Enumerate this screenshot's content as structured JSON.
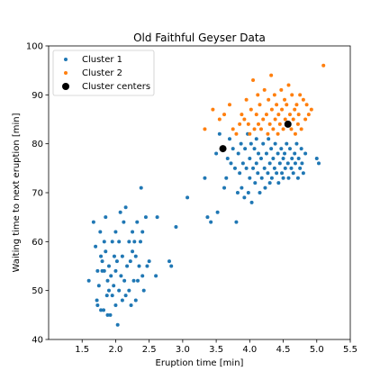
{
  "chart_data": {
    "type": "scatter",
    "title": "Old Faithful Geyser Data",
    "xlabel": "Eruption time [min]",
    "ylabel": "Waiting time to next eruption [min]",
    "xlim": [
      1.0,
      5.5
    ],
    "ylim": [
      40,
      100
    ],
    "xticks": [
      1.5,
      2.0,
      2.5,
      3.0,
      3.5,
      4.0,
      4.5,
      5.0,
      5.5
    ],
    "yticks": [
      40,
      50,
      60,
      70,
      80,
      90,
      100
    ],
    "xtick_labels": [
      "1.5",
      "2.0",
      "2.5",
      "3.0",
      "3.5",
      "4.0",
      "4.5",
      "5.0",
      "5.5"
    ],
    "ytick_labels": [
      "40",
      "50",
      "60",
      "70",
      "80",
      "90",
      "100"
    ],
    "grid": false,
    "legend": {
      "placement": "top-left"
    },
    "series": [
      {
        "name": "Cluster 1",
        "color": "#1f77b4",
        "marker": "dot-small",
        "points": [
          [
            1.6,
            52
          ],
          [
            1.67,
            64
          ],
          [
            1.7,
            59
          ],
          [
            1.72,
            48
          ],
          [
            1.73,
            47
          ],
          [
            1.73,
            54
          ],
          [
            1.75,
            51
          ],
          [
            1.77,
            62
          ],
          [
            1.78,
            46
          ],
          [
            1.78,
            57
          ],
          [
            1.8,
            54
          ],
          [
            1.8,
            56
          ],
          [
            1.82,
            46
          ],
          [
            1.83,
            54
          ],
          [
            1.83,
            60
          ],
          [
            1.85,
            58
          ],
          [
            1.85,
            65
          ],
          [
            1.87,
            49
          ],
          [
            1.88,
            52
          ],
          [
            1.88,
            45
          ],
          [
            1.9,
            50
          ],
          [
            1.9,
            55
          ],
          [
            1.92,
            45
          ],
          [
            1.93,
            53
          ],
          [
            1.95,
            60
          ],
          [
            1.95,
            49
          ],
          [
            1.97,
            51
          ],
          [
            1.98,
            57
          ],
          [
            2.0,
            54
          ],
          [
            2.0,
            62
          ],
          [
            2.0,
            47
          ],
          [
            2.02,
            56
          ],
          [
            2.03,
            43
          ],
          [
            2.05,
            50
          ],
          [
            2.05,
            60
          ],
          [
            2.07,
            66
          ],
          [
            2.08,
            53
          ],
          [
            2.1,
            48
          ],
          [
            2.1,
            57
          ],
          [
            2.12,
            64
          ],
          [
            2.13,
            52
          ],
          [
            2.15,
            67
          ],
          [
            2.15,
            49
          ],
          [
            2.17,
            55
          ],
          [
            2.2,
            60
          ],
          [
            2.2,
            50
          ],
          [
            2.22,
            56
          ],
          [
            2.23,
            47
          ],
          [
            2.25,
            58
          ],
          [
            2.25,
            62
          ],
          [
            2.27,
            52
          ],
          [
            2.28,
            60
          ],
          [
            2.3,
            57
          ],
          [
            2.3,
            48
          ],
          [
            2.32,
            64
          ],
          [
            2.33,
            52
          ],
          [
            2.35,
            55
          ],
          [
            2.37,
            60
          ],
          [
            2.38,
            71
          ],
          [
            2.4,
            53
          ],
          [
            2.4,
            62
          ],
          [
            2.42,
            50
          ],
          [
            2.45,
            65
          ],
          [
            2.47,
            55
          ],
          [
            2.5,
            56
          ],
          [
            2.6,
            53
          ],
          [
            2.62,
            65
          ],
          [
            2.8,
            56
          ],
          [
            2.83,
            55
          ],
          [
            2.9,
            63
          ],
          [
            3.07,
            69
          ],
          [
            3.33,
            73
          ],
          [
            3.37,
            65
          ],
          [
            3.42,
            64
          ],
          [
            3.5,
            78
          ],
          [
            3.52,
            66
          ],
          [
            3.55,
            82
          ],
          [
            3.62,
            71
          ],
          [
            3.65,
            73
          ],
          [
            3.67,
            77
          ],
          [
            3.7,
            81
          ],
          [
            3.72,
            76
          ],
          [
            3.75,
            79
          ],
          [
            3.78,
            75
          ],
          [
            3.8,
            64
          ],
          [
            3.82,
            70
          ],
          [
            3.83,
            78
          ],
          [
            3.85,
            74
          ],
          [
            3.87,
            80
          ],
          [
            3.88,
            71
          ],
          [
            3.9,
            76
          ],
          [
            3.92,
            69
          ],
          [
            3.93,
            79
          ],
          [
            3.95,
            75
          ],
          [
            3.97,
            82
          ],
          [
            3.98,
            70
          ],
          [
            4.0,
            77
          ],
          [
            4.0,
            73
          ],
          [
            4.02,
            80
          ],
          [
            4.03,
            68
          ],
          [
            4.05,
            75
          ],
          [
            4.07,
            79
          ],
          [
            4.08,
            72
          ],
          [
            4.1,
            76
          ],
          [
            4.1,
            81
          ],
          [
            4.12,
            74
          ],
          [
            4.13,
            78
          ],
          [
            4.15,
            70
          ],
          [
            4.17,
            77
          ],
          [
            4.18,
            73
          ],
          [
            4.2,
            80
          ],
          [
            4.22,
            75
          ],
          [
            4.23,
            71
          ],
          [
            4.25,
            78
          ],
          [
            4.27,
            74
          ],
          [
            4.28,
            81
          ],
          [
            4.3,
            76
          ],
          [
            4.3,
            72
          ],
          [
            4.32,
            79
          ],
          [
            4.33,
            73
          ],
          [
            4.35,
            77
          ],
          [
            4.37,
            75
          ],
          [
            4.38,
            80
          ],
          [
            4.4,
            74
          ],
          [
            4.42,
            78
          ],
          [
            4.43,
            72
          ],
          [
            4.45,
            76
          ],
          [
            4.47,
            79
          ],
          [
            4.48,
            74
          ],
          [
            4.5,
            77
          ],
          [
            4.5,
            73
          ],
          [
            4.52,
            78
          ],
          [
            4.53,
            75
          ],
          [
            4.55,
            80
          ],
          [
            4.57,
            76
          ],
          [
            4.58,
            73
          ],
          [
            4.6,
            79
          ],
          [
            4.62,
            75
          ],
          [
            4.63,
            77
          ],
          [
            4.65,
            74
          ],
          [
            4.67,
            78
          ],
          [
            4.68,
            76
          ],
          [
            4.7,
            80
          ],
          [
            4.72,
            73
          ],
          [
            4.73,
            77
          ],
          [
            4.75,
            75
          ],
          [
            4.77,
            79
          ],
          [
            4.78,
            76
          ],
          [
            4.8,
            74
          ],
          [
            4.83,
            78
          ],
          [
            5.0,
            77
          ],
          [
            5.03,
            76
          ]
        ]
      },
      {
        "name": "Cluster 2",
        "color": "#ff7f0e",
        "marker": "dot-small",
        "points": [
          [
            3.33,
            83
          ],
          [
            3.45,
            87
          ],
          [
            3.55,
            85
          ],
          [
            3.62,
            86
          ],
          [
            3.7,
            88
          ],
          [
            3.75,
            83
          ],
          [
            3.8,
            82
          ],
          [
            3.85,
            84
          ],
          [
            3.88,
            86
          ],
          [
            3.92,
            85
          ],
          [
            3.95,
            89
          ],
          [
            3.98,
            84
          ],
          [
            4.0,
            82
          ],
          [
            4.02,
            87
          ],
          [
            4.05,
            93
          ],
          [
            4.07,
            83
          ],
          [
            4.1,
            86
          ],
          [
            4.12,
            90
          ],
          [
            4.13,
            84
          ],
          [
            4.15,
            88
          ],
          [
            4.17,
            83
          ],
          [
            4.2,
            85
          ],
          [
            4.22,
            91
          ],
          [
            4.25,
            86
          ],
          [
            4.27,
            82
          ],
          [
            4.28,
            89
          ],
          [
            4.3,
            84
          ],
          [
            4.32,
            94
          ],
          [
            4.33,
            87
          ],
          [
            4.35,
            83
          ],
          [
            4.37,
            90
          ],
          [
            4.38,
            85
          ],
          [
            4.4,
            88
          ],
          [
            4.42,
            82
          ],
          [
            4.43,
            86
          ],
          [
            4.45,
            84
          ],
          [
            4.47,
            91
          ],
          [
            4.48,
            87
          ],
          [
            4.5,
            83
          ],
          [
            4.52,
            89
          ],
          [
            4.53,
            85
          ],
          [
            4.55,
            88
          ],
          [
            4.57,
            84
          ],
          [
            4.58,
            92
          ],
          [
            4.6,
            86
          ],
          [
            4.62,
            83
          ],
          [
            4.63,
            90
          ],
          [
            4.65,
            85
          ],
          [
            4.67,
            87
          ],
          [
            4.68,
            82
          ],
          [
            4.7,
            88
          ],
          [
            4.72,
            84
          ],
          [
            4.73,
            86
          ],
          [
            4.75,
            90
          ],
          [
            4.77,
            83
          ],
          [
            4.8,
            89
          ],
          [
            4.83,
            85
          ],
          [
            4.85,
            88
          ],
          [
            4.88,
            86
          ],
          [
            4.92,
            87
          ],
          [
            5.1,
            96
          ]
        ]
      }
    ],
    "cluster_centers": {
      "name": "Cluster centers",
      "color": "#000000",
      "marker": "dot-large",
      "points": [
        [
          3.6,
          79
        ],
        [
          4.57,
          84
        ]
      ]
    }
  }
}
